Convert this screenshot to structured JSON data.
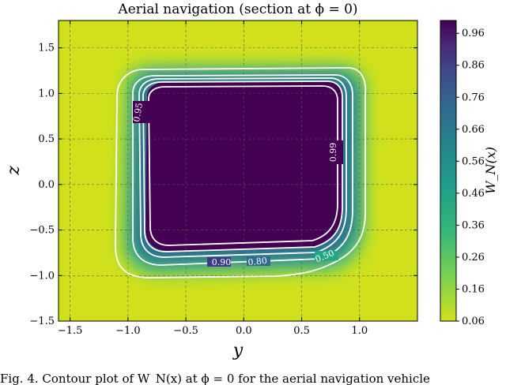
{
  "chart_data": {
    "type": "heatmap",
    "title": "Aerial navigation (section at ϕ = 0)",
    "xlabel": "y",
    "ylabel": "z",
    "xlim": [
      -1.6,
      1.5
    ],
    "ylim": [
      -1.5,
      1.8
    ],
    "x_ticks": [
      "−1.5",
      "−1.0",
      "−0.5",
      "0.0",
      "0.5",
      "1.0"
    ],
    "x_tick_values": [
      -1.5,
      -1.0,
      -0.5,
      0.0,
      0.5,
      1.0
    ],
    "y_ticks": [
      "−1.5",
      "−1.0",
      "−0.5",
      "0.0",
      "0.5",
      "1.0",
      "1.5"
    ],
    "y_tick_values": [
      -1.5,
      -1.0,
      -0.5,
      0.0,
      0.5,
      1.0,
      1.5
    ],
    "grid": true,
    "colorbar": {
      "label": "W_N(x)",
      "range": [
        0.06,
        1.0
      ],
      "ticks": [
        "0.96",
        "0.86",
        "0.76",
        "0.66",
        "0.56",
        "0.46",
        "0.36",
        "0.26",
        "0.16",
        "0.06"
      ],
      "tick_values": [
        0.96,
        0.86,
        0.76,
        0.66,
        0.56,
        0.46,
        0.36,
        0.26,
        0.16,
        0.06
      ]
    },
    "contours": [
      {
        "level": 0.5,
        "label": "0.50"
      },
      {
        "level": 0.8,
        "label": "0.80"
      },
      {
        "level": 0.9,
        "label": "0.90"
      },
      {
        "level": 0.95,
        "label": "0.95"
      },
      {
        "level": 0.99,
        "label": "0.99"
      }
    ],
    "colors": {
      "low": "#d0e11c",
      "mid": "#22a884",
      "high": "#440154",
      "contour": "#ffffff"
    }
  },
  "caption": "Fig. 4.   Contour plot of W_N(x) at ϕ = 0 for the aerial navigation vehicle"
}
